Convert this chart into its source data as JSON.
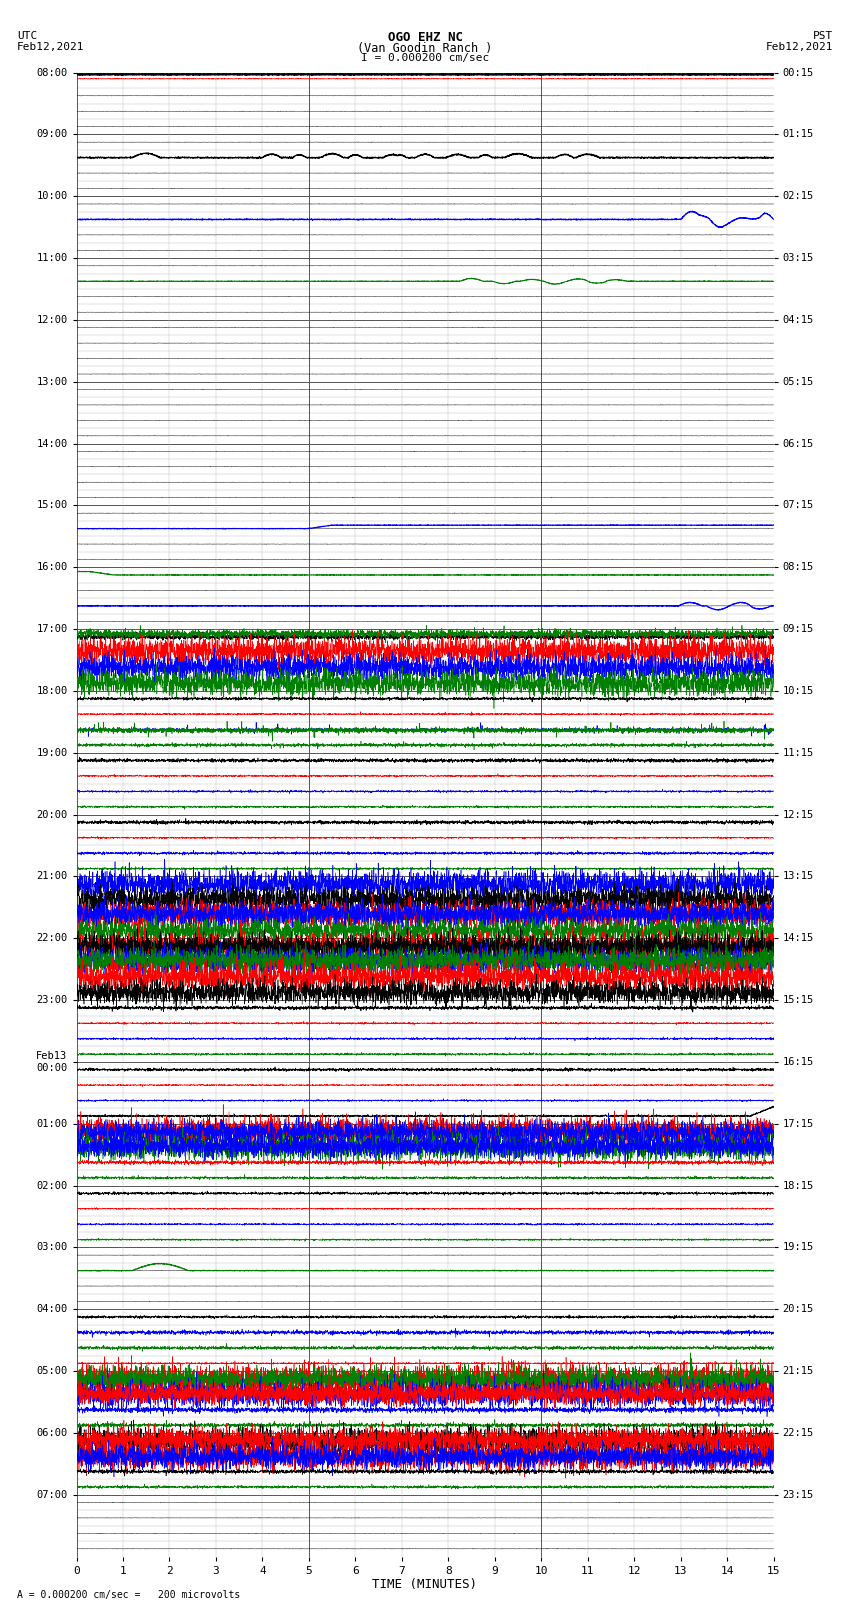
{
  "title_line1": "OGO EHZ NC",
  "title_line2": "(Van Goodin Ranch )",
  "title_line3": "I = 0.000200 cm/sec",
  "label_utc": "UTC",
  "label_date_left": "Feb12,2021",
  "label_pst": "PST",
  "label_date_right": "Feb12,2021",
  "xlabel": "TIME (MINUTES)",
  "footer": "A = 0.000200 cm/sec =   200 microvolts",
  "utc_times": [
    "08:00",
    "09:00",
    "10:00",
    "11:00",
    "12:00",
    "13:00",
    "14:00",
    "15:00",
    "16:00",
    "17:00",
    "18:00",
    "19:00",
    "20:00",
    "21:00",
    "22:00",
    "23:00",
    "Feb13\n00:00",
    "01:00",
    "02:00",
    "03:00",
    "04:00",
    "05:00",
    "06:00",
    "07:00"
  ],
  "pst_times": [
    "00:15",
    "01:15",
    "02:15",
    "03:15",
    "04:15",
    "05:15",
    "06:15",
    "07:15",
    "08:15",
    "09:15",
    "10:15",
    "11:15",
    "12:15",
    "13:15",
    "14:15",
    "15:15",
    "16:15",
    "17:15",
    "18:15",
    "19:15",
    "20:15",
    "21:15",
    "22:15",
    "23:15"
  ],
  "num_rows": 96,
  "rows_per_hour": 4,
  "x_min": 0,
  "x_max": 15,
  "bg_color": "#ffffff",
  "grid_color": "#555555",
  "minor_grid_color": "#bbbbbb"
}
